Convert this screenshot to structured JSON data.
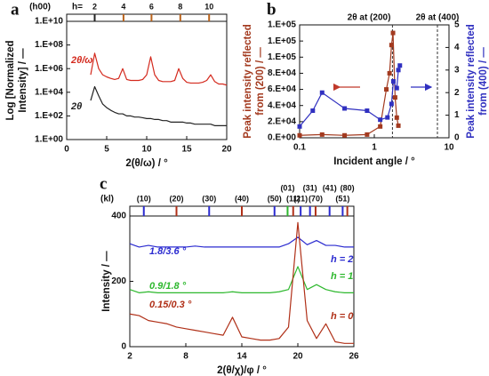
{
  "chart_data": [
    {
      "type": "line",
      "panel_label": "a",
      "yscale": "log",
      "xlabel": "2(θ/ω) / °",
      "ylabel": [
        "Log [Normalized",
        "Intensity] / —"
      ],
      "x": [
        3,
        3.5,
        4,
        4.5,
        5,
        5.5,
        6,
        6.5,
        7,
        7.5,
        8,
        8.5,
        9,
        9.5,
        10,
        10.5,
        11,
        11.5,
        12,
        12.5,
        13,
        13.5,
        14,
        14.5,
        15,
        15.5,
        16,
        16.5,
        17,
        17.5,
        18,
        18.5,
        19,
        19.5,
        20
      ],
      "series": [
        {
          "name": "2θ/ω",
          "color": "#d42a1e",
          "values": [
            300000.0,
            20000000.0,
            1000000.0,
            300000.0,
            200000.0,
            150000.0,
            120000.0,
            150000.0,
            1000000.0,
            120000.0,
            100000.0,
            100000.0,
            100000.0,
            120000.0,
            300000.0,
            10000000.0,
            300000.0,
            100000.0,
            80000.0,
            80000.0,
            80000.0,
            100000.0,
            1000000.0,
            150000.0,
            70000.0,
            60000.0,
            60000.0,
            60000.0,
            70000.0,
            100000.0,
            300000.0,
            80000.0,
            50000.0,
            50000.0,
            40000.0
          ]
        },
        {
          "name": "2θ",
          "color": "#222222",
          "values": [
            2000.0,
            30000.0,
            5000.0,
            1000.0,
            500,
            300,
            200,
            150,
            150,
            100,
            100,
            80,
            80,
            70,
            60,
            60,
            50,
            50,
            40,
            40,
            30,
            30,
            30,
            30,
            25,
            25,
            20,
            20,
            20,
            20,
            20,
            15,
            15,
            15,
            15
          ]
        }
      ],
      "xlim": [
        0,
        20
      ],
      "xticks": [
        0,
        5,
        10,
        15,
        20
      ],
      "ylim": [
        1,
        10000000000.0
      ],
      "yticks": [
        {
          "value": 1,
          "label": "1.E+00"
        },
        {
          "value": 100,
          "label": "1.E+02"
        },
        {
          "value": 10000,
          "label": "1.E+04"
        },
        {
          "value": 1000000,
          "label": "1.E+06"
        },
        {
          "value": 100000000,
          "label": "1.E+08"
        },
        {
          "value": 10000000000,
          "label": "1.E+10"
        }
      ],
      "top_title": "(h00)",
      "top_prefix": "h=",
      "top_markers": [
        {
          "x": 3.5,
          "label": 2,
          "color": "#222222"
        },
        {
          "x": 7.1,
          "label": 4,
          "color": "#b8621b"
        },
        {
          "x": 10.6,
          "label": 6,
          "color": "#b8621b"
        },
        {
          "x": 14.2,
          "label": 8,
          "color": "#b8621b"
        },
        {
          "x": 17.8,
          "label": 10,
          "color": "#b8621b"
        }
      ]
    },
    {
      "type": "line",
      "panel_label": "b",
      "xscale": "log",
      "markers": true,
      "xlabel": "Incident angle / °",
      "ylabel": [
        "Peak intensity reflected",
        "from (200) / —"
      ],
      "ylabel_color": "#a33a1f",
      "y2label": [
        "Peak intensity reflected",
        "from (400) / —"
      ],
      "y2label_color": "#3030c0",
      "series": [
        {
          "color": "#a33a1f",
          "x": [
            0.1,
            0.2,
            0.4,
            0.8,
            1.2,
            1.45,
            1.6,
            1.7,
            1.78,
            1.9,
            2.0,
            2.1
          ],
          "values": [
            3000,
            4000,
            3000,
            4000,
            14000,
            60000,
            80000,
            115000,
            130000,
            50000,
            25000,
            15000
          ]
        },
        {
          "color": "#3030c0",
          "axis": "y2",
          "x": [
            0.1,
            0.15,
            0.2,
            0.4,
            0.8,
            1.2,
            1.5,
            1.7,
            1.8,
            2.0,
            2.1,
            2.2
          ],
          "values": [
            0.5,
            1.2,
            2.0,
            1.3,
            1.2,
            0.8,
            0.9,
            1.5,
            2.5,
            2.2,
            3.0,
            3.2
          ]
        }
      ],
      "xlim": [
        0.1,
        10
      ],
      "xticks": [
        0.1,
        1,
        10
      ],
      "ylim": [
        0,
        140000
      ],
      "yticks": [
        {
          "value": 0,
          "label": "0.E+00"
        },
        {
          "value": 20000,
          "label": "2.E+04"
        },
        {
          "value": 40000,
          "label": "4.E+04"
        },
        {
          "value": 60000,
          "label": "6.E+04"
        },
        {
          "value": 80000,
          "label": "8.E+04"
        },
        {
          "value": 100000,
          "label": "1.E+05"
        },
        {
          "value": 120000,
          "label": "1.E+05"
        },
        {
          "value": 140000,
          "label": "1.E+05"
        }
      ],
      "y2lim": [
        0,
        5
      ],
      "y2ticks": [
        0,
        1,
        2,
        3,
        4,
        5
      ],
      "vlines": [
        {
          "x": 1.75,
          "label": "2θ at (200)"
        },
        {
          "x": 7,
          "label": "2θ at (400)"
        }
      ]
    },
    {
      "type": "line",
      "panel_label": "c",
      "xlabel": "2(θ/χ)/φ / °",
      "ylabel": "Intensity / —",
      "x": [
        2,
        3,
        4,
        5,
        6,
        7,
        8,
        9,
        10,
        11,
        12,
        13,
        14,
        15,
        16,
        17,
        18,
        19,
        20,
        21,
        22,
        23,
        24,
        25,
        26
      ],
      "series": [
        {
          "name": "h = 2",
          "color": "#2b2bd0",
          "values": [
            315,
            305,
            310,
            305,
            305,
            305,
            305,
            308,
            305,
            305,
            305,
            305,
            305,
            305,
            305,
            305,
            305,
            315,
            335,
            312,
            325,
            310,
            310,
            305,
            305
          ]
        },
        {
          "name": "h = 1",
          "color": "#2db82d",
          "values": [
            175,
            165,
            168,
            165,
            165,
            165,
            165,
            165,
            165,
            165,
            165,
            168,
            165,
            165,
            165,
            165,
            168,
            175,
            245,
            175,
            190,
            175,
            168,
            165,
            165
          ]
        },
        {
          "name": "h = 0",
          "color": "#b03018",
          "values": [
            100,
            95,
            80,
            75,
            70,
            60,
            55,
            50,
            45,
            40,
            35,
            90,
            30,
            25,
            20,
            20,
            25,
            60,
            380,
            80,
            25,
            70,
            15,
            10,
            10
          ]
        }
      ],
      "annotations": [
        "1.8/3.6 °",
        "0.9/1.8 °",
        "0.15/0.3 °"
      ],
      "xlim": [
        2,
        26
      ],
      "xticks": [
        2,
        8,
        14,
        20,
        26
      ],
      "ylim": [
        0,
        400
      ],
      "yticks": [
        0,
        200,
        400
      ],
      "top_title": "(kl)",
      "top_markers": [
        {
          "x": 3.5,
          "label": "(10)",
          "color": "#2b2bd0"
        },
        {
          "x": 7,
          "label": "(20)",
          "color": "#b03018"
        },
        {
          "x": 10.5,
          "label": "(30)",
          "color": "#2b2bd0"
        },
        {
          "x": 14,
          "label": "(40)",
          "color": "#b03018"
        },
        {
          "x": 17.5,
          "label": "(50)",
          "color": "#2b2bd0"
        },
        {
          "x": 18.9,
          "label": "(01)",
          "color": "#2db82d"
        },
        {
          "x": 19.5,
          "label": "(11)",
          "color": "#b03018"
        },
        {
          "x": 20.3,
          "label": "(21)",
          "color": "#2b2bd0"
        },
        {
          "x": 21.3,
          "label": "(31)",
          "color": "#2b2bd0"
        },
        {
          "x": 21.9,
          "label": "(70)",
          "color": "#b03018"
        },
        {
          "x": 23.4,
          "label": "(41)",
          "color": "#2b2bd0"
        },
        {
          "x": 24.8,
          "label": "(51)",
          "color": "#2b2bd0"
        },
        {
          "x": 25.3,
          "label": "(80)",
          "color": "#b03018"
        }
      ]
    }
  ]
}
